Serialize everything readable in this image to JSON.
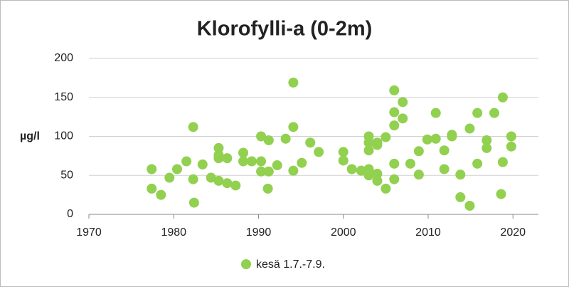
{
  "chart_data": {
    "type": "scatter",
    "title": "Klorofylli-a (0-2m)",
    "y_label": "µg/l",
    "xlim": [
      1970,
      2023
    ],
    "xticks": [
      1970,
      1980,
      1990,
      2000,
      2010,
      2020
    ],
    "ylim": [
      0,
      200
    ],
    "yticks": [
      0,
      50,
      100,
      150,
      200
    ],
    "grid": true,
    "legend": "bottom",
    "series": [
      {
        "name": "kesä 1.7.-7.9.",
        "color": "#92d050",
        "x": [
          1977.4,
          1977.4,
          1978.5,
          1979.5,
          1980.4,
          1981.5,
          1982.3,
          1982.3,
          1982.4,
          1983.4,
          1984.4,
          1985.3,
          1985.3,
          1985.3,
          1985.3,
          1986.3,
          1986.3,
          1987.3,
          1988.2,
          1988.2,
          1989.2,
          1990.3,
          1990.3,
          1990.3,
          1991.2,
          1991.2,
          1991.1,
          1992.2,
          1993.2,
          1994.1,
          1994.1,
          1994.1,
          1995.1,
          1996.1,
          1997.1,
          2000.0,
          2000.0,
          2001.0,
          2002.1,
          2003.0,
          2003.0,
          2003.0,
          2003.0,
          2003.0,
          2004.0,
          2004.0,
          2004.0,
          2004.0,
          2005.0,
          2005.0,
          2006.0,
          2006.0,
          2006.0,
          2006.0,
          2006.0,
          2007.0,
          2007.0,
          2007.9,
          2008.9,
          2008.9,
          2009.9,
          2010.9,
          2010.9,
          2011.9,
          2011.9,
          2012.8,
          2012.8,
          2013.8,
          2013.8,
          2014.9,
          2014.9,
          2015.8,
          2015.8,
          2016.9,
          2016.9,
          2017.8,
          2018.8,
          2018.8,
          2018.6,
          2019.8,
          2019.8
        ],
        "values": [
          58,
          33,
          25,
          47,
          58,
          68,
          112,
          45,
          15,
          64,
          47,
          85,
          76,
          72,
          43,
          72,
          40,
          37,
          79,
          68,
          68,
          100,
          68,
          55,
          95,
          55,
          33,
          63,
          97,
          169,
          112,
          56,
          66,
          92,
          80,
          80,
          69,
          58,
          56,
          100,
          92,
          82,
          58,
          50,
          92,
          89,
          52,
          43,
          99,
          33,
          159,
          131,
          114,
          65,
          45,
          144,
          123,
          65,
          81,
          51,
          96,
          97,
          130,
          58,
          82,
          102,
          100,
          51,
          22,
          110,
          11,
          130,
          65,
          95,
          85,
          130,
          150,
          67,
          26,
          100,
          87
        ]
      }
    ]
  }
}
